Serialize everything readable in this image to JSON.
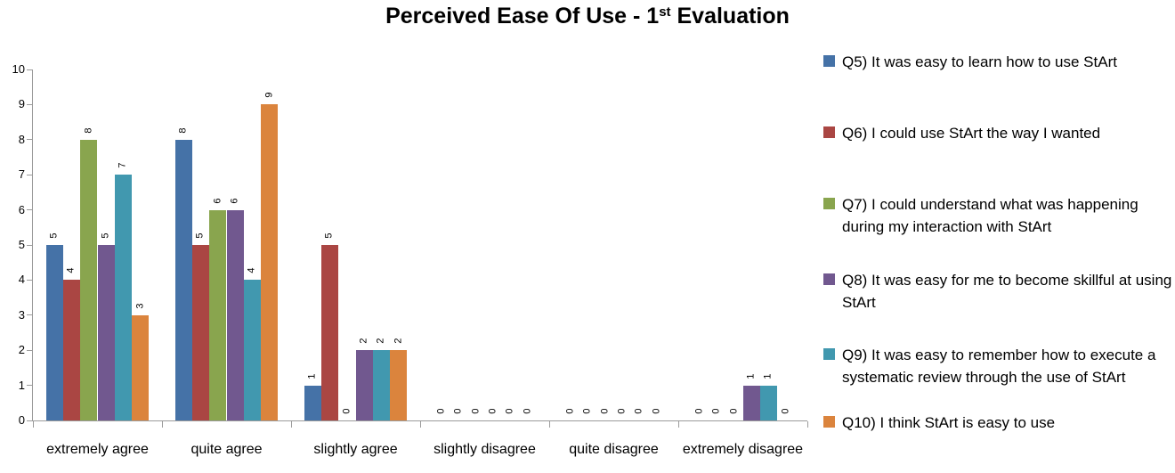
{
  "title": {
    "prefix": "Perceived Ease Of Use - 1",
    "superscript": "st",
    "suffix": " Evaluation"
  },
  "chart_data": {
    "type": "bar",
    "title": "Perceived Ease Of Use - 1st Evaluation",
    "categories": [
      "extremely agree",
      "quite agree",
      "slightly agree",
      "slightly disagree",
      "quite disagree",
      "extremely disagree"
    ],
    "series": [
      {
        "name": "Q5) It was easy to learn how to use StArt",
        "color": "#4572A7",
        "values": [
          5,
          8,
          1,
          0,
          0,
          0
        ]
      },
      {
        "name": "Q6)  I could use StArt the way I wanted",
        "color": "#AA4643",
        "values": [
          4,
          5,
          5,
          0,
          0,
          0
        ]
      },
      {
        "name": "Q7) I could understand what was happening during my interaction with StArt",
        "color": "#89A54E",
        "values": [
          8,
          6,
          0,
          0,
          0,
          0
        ]
      },
      {
        "name": "Q8)  It was easy for me to become skillful at using StArt",
        "color": "#71588F",
        "values": [
          5,
          6,
          2,
          0,
          0,
          1
        ]
      },
      {
        "name": "Q9) It was easy to remember how to execute a systematic review through the use of StArt",
        "color": "#4198AF",
        "values": [
          7,
          4,
          2,
          0,
          0,
          1
        ]
      },
      {
        "name": "Q10) I think StArt is easy to use",
        "color": "#DB843D",
        "values": [
          3,
          9,
          2,
          0,
          0,
          0
        ]
      }
    ],
    "ylim": [
      0,
      10
    ],
    "ytick_step": 1,
    "yticks": [
      0,
      1,
      2,
      3,
      4,
      5,
      6,
      7,
      8,
      9,
      10
    ],
    "grid": false,
    "legend_position": "right",
    "data_labels": "rotated-90-ccw",
    "axis_color": "#9b9b9b",
    "label_color": "#000000"
  }
}
